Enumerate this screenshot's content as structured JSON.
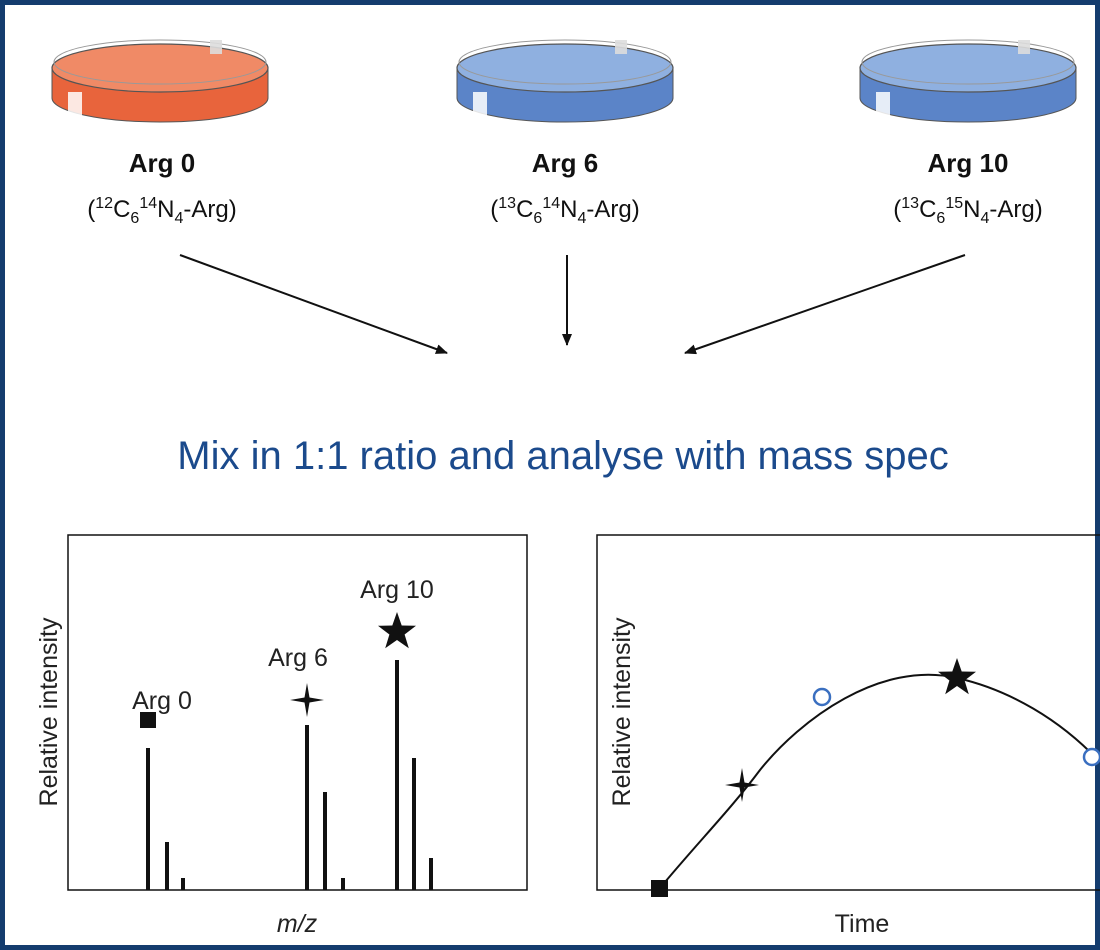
{
  "dishes": [
    {
      "label": "Arg 0",
      "formula": {
        "open": "(",
        "parts": [
          {
            "mass": "12",
            "element": "C",
            "count": "6"
          },
          {
            "mass": "14",
            "element": "N",
            "count": "4"
          }
        ],
        "suffix": "-Arg)"
      }
    },
    {
      "label": "Arg 6",
      "formula": {
        "open": "(",
        "parts": [
          {
            "mass": "13",
            "element": "C",
            "count": "6"
          },
          {
            "mass": "14",
            "element": "N",
            "count": "4"
          }
        ],
        "suffix": "-Arg)"
      }
    },
    {
      "label": "Arg 10",
      "formula": {
        "open": "(",
        "parts": [
          {
            "mass": "13",
            "element": "C",
            "count": "6"
          },
          {
            "mass": "15",
            "element": "N",
            "count": "4"
          }
        ],
        "suffix": "-Arg)"
      }
    }
  ],
  "mix_text": "Mix in 1:1 ratio and analyse with mass spec",
  "spectrum_panel": {
    "y_label": "Relative intensity",
    "x_label": "m/z",
    "peak_labels": [
      "Arg 0",
      "Arg 6",
      "Arg 10"
    ]
  },
  "time_panel": {
    "y_label": "Relative intensity",
    "x_label": "Time"
  }
}
